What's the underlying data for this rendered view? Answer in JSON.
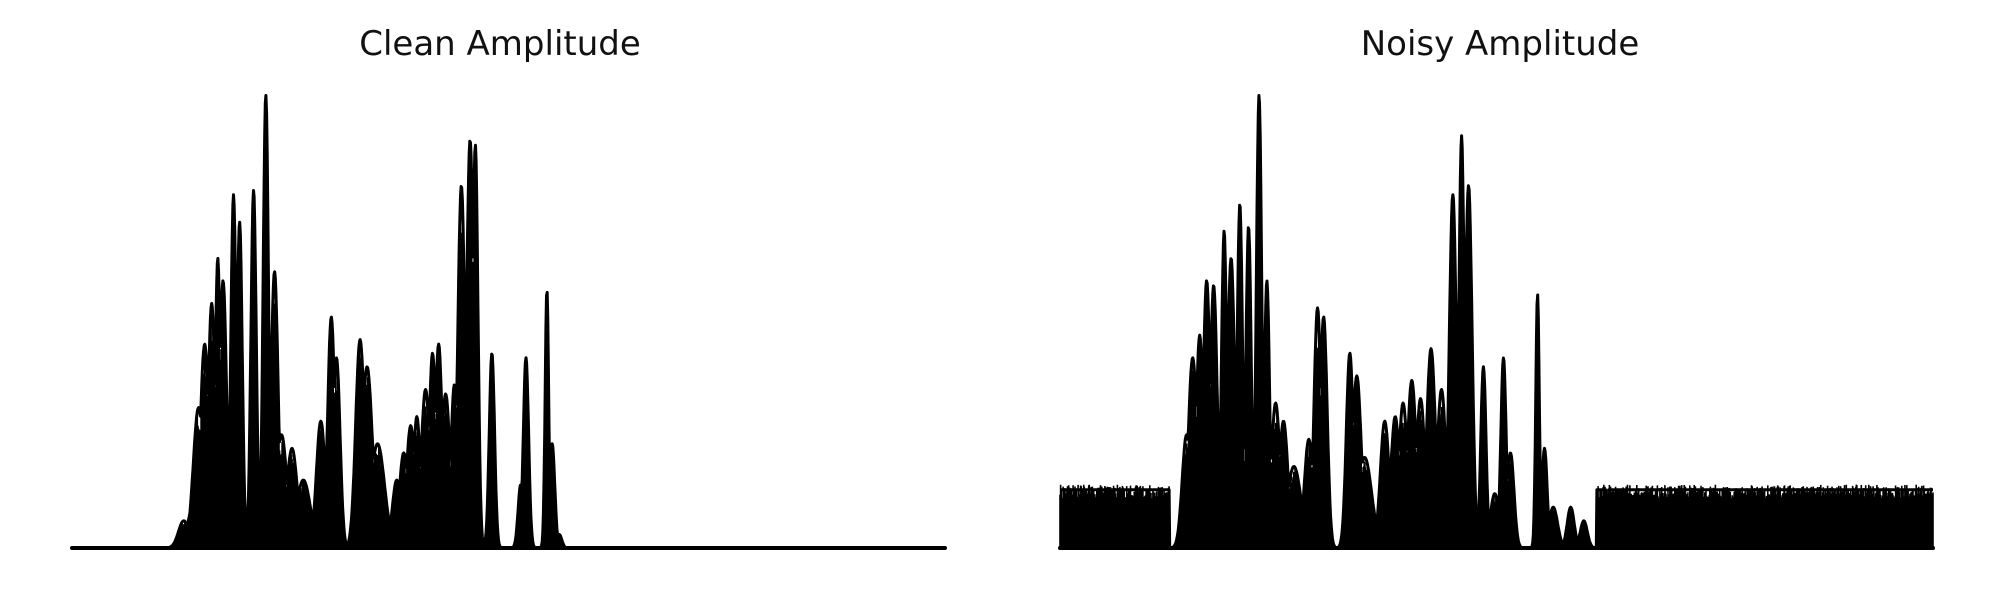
{
  "colors": {
    "signal": "#000000",
    "background": "#ffffff"
  },
  "charts": [
    {
      "title": "Clean Amplitude",
      "chart_data": {
        "type": "area",
        "title": "Clean Amplitude",
        "axes_visible": false,
        "grid": false,
        "ylim": [
          0,
          1
        ],
        "x_range": [
          0,
          1
        ],
        "peaks": [
          [
            0.128,
            0.06,
            0.006
          ],
          [
            0.137,
            0.08,
            0.005
          ],
          [
            0.145,
            0.31,
            0.006
          ],
          [
            0.152,
            0.45,
            0.005
          ],
          [
            0.16,
            0.54,
            0.004
          ],
          [
            0.167,
            0.64,
            0.003
          ],
          [
            0.173,
            0.59,
            0.004
          ],
          [
            0.185,
            0.78,
            0.003
          ],
          [
            0.192,
            0.72,
            0.003
          ],
          [
            0.208,
            0.79,
            0.003
          ],
          [
            0.222,
            1.0,
            0.003
          ],
          [
            0.232,
            0.61,
            0.004
          ],
          [
            0.24,
            0.25,
            0.006
          ],
          [
            0.252,
            0.22,
            0.006
          ],
          [
            0.265,
            0.15,
            0.008
          ],
          [
            0.285,
            0.28,
            0.005
          ],
          [
            0.297,
            0.51,
            0.004
          ],
          [
            0.303,
            0.42,
            0.004
          ],
          [
            0.33,
            0.46,
            0.005
          ],
          [
            0.338,
            0.4,
            0.006
          ],
          [
            0.35,
            0.23,
            0.008
          ],
          [
            0.372,
            0.15,
            0.005
          ],
          [
            0.38,
            0.21,
            0.005
          ],
          [
            0.388,
            0.27,
            0.005
          ],
          [
            0.395,
            0.29,
            0.004
          ],
          [
            0.405,
            0.35,
            0.005
          ],
          [
            0.413,
            0.43,
            0.004
          ],
          [
            0.42,
            0.45,
            0.004
          ],
          [
            0.428,
            0.34,
            0.005
          ],
          [
            0.438,
            0.36,
            0.004
          ],
          [
            0.446,
            0.8,
            0.004
          ],
          [
            0.456,
            0.9,
            0.004
          ],
          [
            0.462,
            0.89,
            0.003
          ],
          [
            0.481,
            0.43,
            0.003
          ],
          [
            0.514,
            0.14,
            0.003
          ],
          [
            0.52,
            0.42,
            0.003
          ],
          [
            0.544,
            0.57,
            0.002
          ],
          [
            0.55,
            0.23,
            0.003
          ],
          [
            0.558,
            0.03,
            0.003
          ]
        ]
      }
    },
    {
      "title": "Noisy Amplitude",
      "chart_data": {
        "type": "area",
        "title": "Noisy Amplitude",
        "axes_visible": false,
        "grid": false,
        "ylim": [
          0,
          1
        ],
        "x_range": [
          0,
          1
        ],
        "noise_floor": 0.14,
        "noise_segments": [
          [
            0.0,
            0.125
          ],
          [
            0.615,
            0.625
          ],
          [
            0.628,
            1.0
          ]
        ],
        "peaks": [
          [
            0.145,
            0.25,
            0.005
          ],
          [
            0.152,
            0.42,
            0.005
          ],
          [
            0.16,
            0.47,
            0.004
          ],
          [
            0.168,
            0.59,
            0.004
          ],
          [
            0.176,
            0.58,
            0.004
          ],
          [
            0.188,
            0.7,
            0.003
          ],
          [
            0.196,
            0.64,
            0.004
          ],
          [
            0.206,
            0.76,
            0.003
          ],
          [
            0.216,
            0.71,
            0.003
          ],
          [
            0.228,
            1.0,
            0.003
          ],
          [
            0.237,
            0.59,
            0.003
          ],
          [
            0.247,
            0.32,
            0.005
          ],
          [
            0.256,
            0.28,
            0.005
          ],
          [
            0.268,
            0.18,
            0.008
          ],
          [
            0.285,
            0.24,
            0.005
          ],
          [
            0.295,
            0.53,
            0.004
          ],
          [
            0.302,
            0.51,
            0.004
          ],
          [
            0.332,
            0.43,
            0.004
          ],
          [
            0.34,
            0.38,
            0.005
          ],
          [
            0.349,
            0.2,
            0.008
          ],
          [
            0.372,
            0.28,
            0.005
          ],
          [
            0.384,
            0.29,
            0.005
          ],
          [
            0.393,
            0.32,
            0.005
          ],
          [
            0.403,
            0.37,
            0.005
          ],
          [
            0.413,
            0.33,
            0.005
          ],
          [
            0.425,
            0.44,
            0.005
          ],
          [
            0.437,
            0.35,
            0.005
          ],
          [
            0.45,
            0.78,
            0.004
          ],
          [
            0.46,
            0.91,
            0.003
          ],
          [
            0.468,
            0.8,
            0.004
          ],
          [
            0.485,
            0.4,
            0.003
          ],
          [
            0.498,
            0.12,
            0.005
          ],
          [
            0.508,
            0.42,
            0.003
          ],
          [
            0.516,
            0.21,
            0.004
          ],
          [
            0.547,
            0.56,
            0.002
          ],
          [
            0.555,
            0.22,
            0.003
          ],
          [
            0.565,
            0.09,
            0.005
          ],
          [
            0.585,
            0.09,
            0.004
          ],
          [
            0.6,
            0.06,
            0.004
          ]
        ]
      }
    }
  ]
}
